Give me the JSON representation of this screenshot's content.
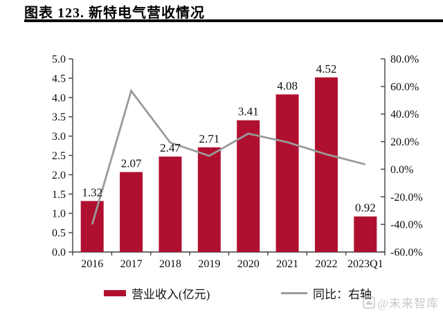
{
  "header": {
    "title": "图表 123. 新特电气营收情况"
  },
  "legend": {
    "items": [
      {
        "label": "营业收入(亿元)",
        "swatch": "bar"
      },
      {
        "label": "同比：右轴",
        "swatch": "line"
      }
    ]
  },
  "watermark": {
    "text": "@未来智库",
    "icon": "future-think-tank-logo"
  },
  "colors": {
    "bar": "#b01030",
    "line": "#9a9a9a",
    "axis": "#3f3f3f",
    "watermark": "#c6c8cb"
  },
  "chart_data": {
    "type": "bar",
    "title": "新特电气营收情况",
    "categories": [
      "2016",
      "2017",
      "2018",
      "2019",
      "2020",
      "2021",
      "2022",
      "2023Q1"
    ],
    "series": [
      {
        "name": "营业收入(亿元)",
        "type": "bar",
        "axis": "left",
        "color": "#b01030",
        "values": [
          1.32,
          2.07,
          2.47,
          2.71,
          3.41,
          4.08,
          4.52,
          0.92
        ],
        "labels": [
          "1.32",
          "2.07",
          "2.47",
          "2.71",
          "3.41",
          "4.08",
          "4.52",
          "0.92"
        ]
      },
      {
        "name": "同比：右轴",
        "type": "line",
        "axis": "right",
        "color": "#9a9a9a",
        "values_pct": [
          -40.0,
          56.8,
          19.3,
          9.7,
          25.8,
          19.6,
          10.8,
          3.5
        ]
      }
    ],
    "left_axis": {
      "min": 0,
      "max": 5,
      "step": 0.5,
      "tick_labels": [
        "0.0",
        "0.5",
        "1.0",
        "1.5",
        "2.0",
        "2.5",
        "3.0",
        "3.5",
        "4.0",
        "4.5",
        "5.0"
      ]
    },
    "right_axis": {
      "min": -60,
      "max": 80,
      "step": 20,
      "tick_labels": [
        "-60.0%",
        "-40.0%",
        "-20.0%",
        "0.0%",
        "20.0%",
        "40.0%",
        "60.0%",
        "80.0%"
      ]
    },
    "xlabel": "",
    "ylabel": "",
    "grid": false,
    "legend_position": "bottom"
  }
}
